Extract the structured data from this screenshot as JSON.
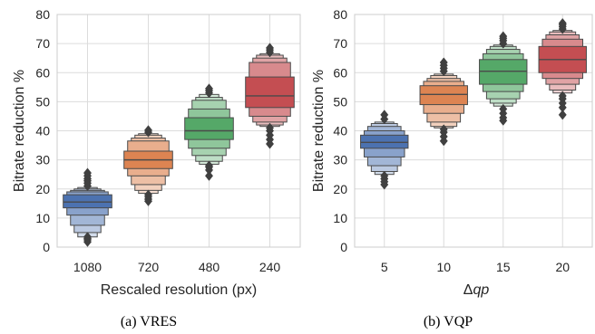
{
  "colors": {
    "grid": "#dcdcdc",
    "box_edge": "#4a4a4a",
    "outlier": "#404040",
    "palette": [
      "#4c72b0",
      "#dd8452",
      "#55a868",
      "#c44e52"
    ]
  },
  "chart_data": [
    {
      "type": "boxenplot",
      "caption": "(a)  VRES",
      "xlabel": "Rescaled resolution (px)",
      "ylabel": "Bitrate reduction %",
      "ylim": [
        0,
        80
      ],
      "yticks": [
        0,
        10,
        20,
        30,
        40,
        50,
        60,
        70,
        80
      ],
      "grid": true,
      "categories": [
        "1080",
        "720",
        "480",
        "240"
      ],
      "series": [
        {
          "median": 15.5,
          "levels": [
            {
              "lo": 13.5,
              "hi": 18.0
            },
            {
              "lo": 11.0,
              "hi": 19.0
            },
            {
              "lo": 7.5,
              "hi": 19.5
            },
            {
              "lo": 5.0,
              "hi": 20.0
            },
            {
              "lo": 3.5,
              "hi": 20.5
            }
          ],
          "outliers": [
            1.8,
            2.5,
            3.0,
            3.5,
            21.0,
            22.0,
            22.8,
            23.5,
            24.5,
            25.5
          ]
        },
        {
          "median": 30.0,
          "levels": [
            {
              "lo": 27.0,
              "hi": 33.0
            },
            {
              "lo": 24.5,
              "hi": 36.5
            },
            {
              "lo": 21.5,
              "hi": 37.5
            },
            {
              "lo": 19.5,
              "hi": 38.5
            },
            {
              "lo": 18.5,
              "hi": 39.0
            }
          ],
          "outliers": [
            15.8,
            16.5,
            17.3,
            18.0,
            39.5,
            40.2
          ]
        },
        {
          "median": 40.0,
          "levels": [
            {
              "lo": 37.0,
              "hi": 44.5
            },
            {
              "lo": 34.0,
              "hi": 47.5
            },
            {
              "lo": 31.5,
              "hi": 50.5
            },
            {
              "lo": 29.5,
              "hi": 51.5
            },
            {
              "lo": 28.5,
              "hi": 52.5
            }
          ],
          "outliers": [
            24.5,
            26.5,
            27.5,
            28.0,
            53.0,
            53.8,
            54.5
          ]
        },
        {
          "median": 52.0,
          "levels": [
            {
              "lo": 48.0,
              "hi": 58.5
            },
            {
              "lo": 45.0,
              "hi": 63.5
            },
            {
              "lo": 43.0,
              "hi": 65.0
            },
            {
              "lo": 42.0,
              "hi": 66.0
            },
            {
              "lo": 41.5,
              "hi": 66.5
            }
          ],
          "outliers": [
            35.5,
            37.0,
            38.5,
            40.0,
            41.0,
            67.0,
            67.8,
            68.5
          ]
        }
      ]
    },
    {
      "type": "boxenplot",
      "caption": "(b)  VQP",
      "xlabel": "Δqp",
      "ylabel": "Bitrate reduction %",
      "ylim": [
        0,
        80
      ],
      "yticks": [
        0,
        10,
        20,
        30,
        40,
        50,
        60,
        70,
        80
      ],
      "grid": true,
      "categories": [
        "5",
        "10",
        "15",
        "20"
      ],
      "series": [
        {
          "median": 36.0,
          "levels": [
            {
              "lo": 34.0,
              "hi": 38.5
            },
            {
              "lo": 31.0,
              "hi": 40.0
            },
            {
              "lo": 28.0,
              "hi": 41.5
            },
            {
              "lo": 26.0,
              "hi": 42.5
            },
            {
              "lo": 25.0,
              "hi": 43.0
            }
          ],
          "outliers": [
            21.5,
            22.5,
            23.5,
            24.5,
            44.0,
            45.5
          ]
        },
        {
          "median": 52.5,
          "levels": [
            {
              "lo": 49.0,
              "hi": 55.5
            },
            {
              "lo": 46.0,
              "hi": 57.0
            },
            {
              "lo": 43.0,
              "hi": 58.0
            },
            {
              "lo": 41.5,
              "hi": 59.0
            },
            {
              "lo": 41.0,
              "hi": 59.5
            }
          ],
          "outliers": [
            36.5,
            38.0,
            39.5,
            40.5,
            60.5,
            61.5,
            62.5,
            63.5
          ]
        },
        {
          "median": 60.5,
          "levels": [
            {
              "lo": 56.0,
              "hi": 64.5
            },
            {
              "lo": 53.5,
              "hi": 66.5
            },
            {
              "lo": 51.0,
              "hi": 68.0
            },
            {
              "lo": 49.5,
              "hi": 69.0
            },
            {
              "lo": 48.5,
              "hi": 69.5
            }
          ],
          "outliers": [
            43.5,
            44.5,
            46.0,
            47.5,
            70.0,
            71.0,
            71.8,
            72.5
          ]
        },
        {
          "median": 64.5,
          "levels": [
            {
              "lo": 60.0,
              "hi": 69.0
            },
            {
              "lo": 58.0,
              "hi": 71.5
            },
            {
              "lo": 56.0,
              "hi": 73.0
            },
            {
              "lo": 54.0,
              "hi": 74.0
            },
            {
              "lo": 53.0,
              "hi": 74.5
            }
          ],
          "outliers": [
            45.5,
            48.0,
            49.5,
            51.0,
            52.0,
            75.0,
            75.8,
            76.5,
            77.0
          ]
        }
      ]
    }
  ]
}
